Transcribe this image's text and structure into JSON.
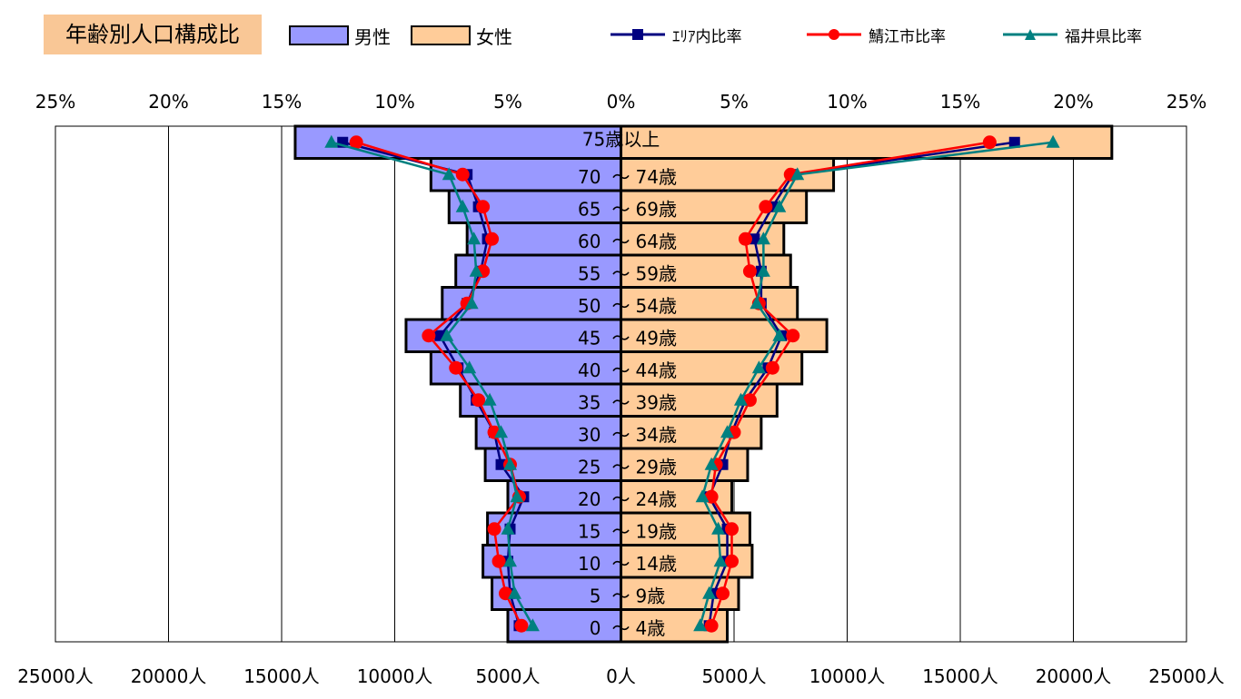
{
  "title": "年齢別人口構成比",
  "legend": {
    "male": "男性",
    "female": "女性",
    "area": "ｴﾘｱ内比率",
    "sabae": "鯖江市比率",
    "fukui": "福井県比率"
  },
  "colors": {
    "male_fill": "#9999ff",
    "female_fill": "#ffcc99",
    "area": "#000080",
    "sabae": "#ff0000",
    "fukui": "#008080",
    "title_bg": "#f9c796"
  },
  "chart_data": {
    "type": "bar",
    "orientation": "population-pyramid",
    "categories": [
      "75歳以上",
      "70 ～ 74歳",
      "65 ～ 69歳",
      "60 ～ 64歳",
      "55 ～ 59歳",
      "50 ～ 54歳",
      "45 ～ 49歳",
      "40 ～ 44歳",
      "35 ～ 39歳",
      "30 ～ 34歳",
      "25 ～ 29歳",
      "20 ～ 24歳",
      "15 ～ 19歳",
      "10 ～ 14歳",
      "5 ～ 9歳",
      "0 ～ 4歳"
    ],
    "population_axis": {
      "range": [
        0,
        25000
      ],
      "tick_labels": [
        "25000人",
        "20000人",
        "15000人",
        "10000人",
        "5000人",
        "0人",
        "5000人",
        "10000人",
        "15000人",
        "20000人",
        "25000人"
      ]
    },
    "ratio_axis": {
      "range": [
        0,
        25
      ],
      "tick_labels": [
        "25%",
        "20%",
        "15%",
        "10%",
        "5%",
        "0%",
        "5%",
        "10%",
        "15%",
        "20%",
        "25%"
      ]
    },
    "population": {
      "male": [
        14400,
        8400,
        7600,
        6800,
        7300,
        7900,
        9500,
        8400,
        7100,
        6400,
        6000,
        5000,
        5900,
        6100,
        5700,
        5000
      ],
      "female": [
        21700,
        9400,
        8200,
        7200,
        7500,
        7800,
        9100,
        8000,
        6900,
        6200,
        5600,
        4900,
        5700,
        5800,
        5200,
        4700
      ]
    },
    "ratio_series": [
      {
        "name": "ｴﾘｱ内比率",
        "male": [
          12.3,
          6.8,
          6.3,
          5.9,
          6.2,
          6.8,
          8.0,
          7.2,
          6.4,
          5.6,
          5.3,
          4.3,
          4.9,
          5.0,
          4.9,
          4.5
        ],
        "female": [
          17.4,
          7.6,
          6.7,
          5.9,
          6.2,
          6.2,
          7.1,
          6.5,
          5.5,
          4.9,
          4.5,
          3.9,
          4.7,
          4.7,
          4.1,
          3.9
        ]
      },
      {
        "name": "鯖江市比率",
        "male": [
          11.7,
          7.0,
          6.1,
          5.7,
          6.1,
          6.8,
          8.5,
          7.3,
          6.3,
          5.6,
          4.9,
          4.5,
          5.6,
          5.4,
          5.1,
          4.4
        ],
        "female": [
          16.3,
          7.5,
          6.4,
          5.5,
          5.7,
          6.1,
          7.6,
          6.7,
          5.7,
          5.0,
          4.2,
          4.0,
          4.9,
          4.9,
          4.5,
          4.0
        ]
      },
      {
        "name": "福井県比率",
        "male": [
          12.8,
          7.6,
          7.0,
          6.5,
          6.4,
          6.6,
          7.7,
          6.7,
          5.8,
          5.3,
          4.9,
          4.6,
          5.0,
          4.9,
          4.7,
          3.9
        ],
        "female": [
          19.1,
          7.8,
          7.0,
          6.3,
          6.3,
          6.0,
          7.0,
          6.1,
          5.3,
          4.7,
          4.0,
          3.6,
          4.3,
          4.4,
          3.9,
          3.5
        ]
      }
    ],
    "grid": true
  }
}
